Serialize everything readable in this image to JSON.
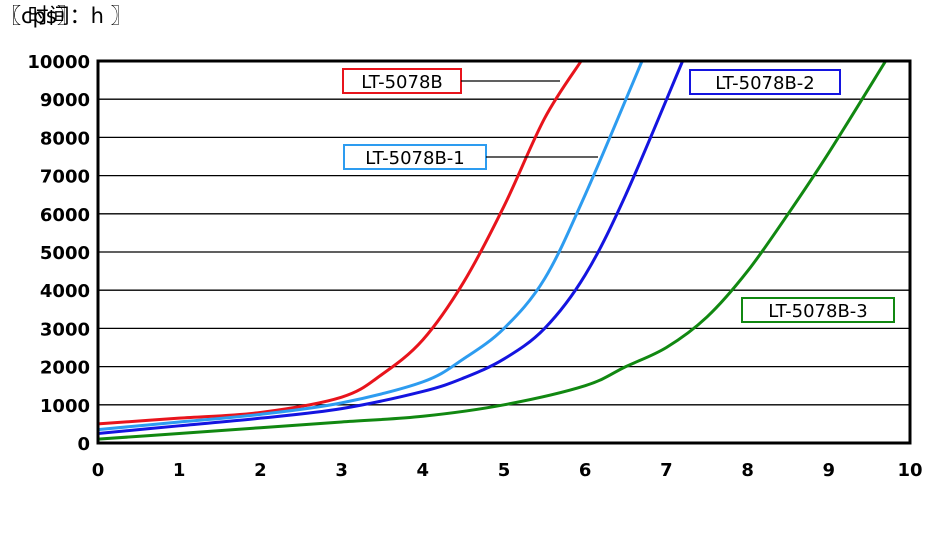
{
  "chart_data": {
    "type": "line",
    "ylabel": "〖cps〗",
    "xlabel": "〖 时间：h 〗",
    "xlim": [
      0,
      10
    ],
    "ylim": [
      0,
      10000
    ],
    "xticks": [
      "0",
      "1",
      "2",
      "3",
      "4",
      "5",
      "6",
      "7",
      "8",
      "9",
      "10"
    ],
    "yticks": [
      "0",
      "1000",
      "2000",
      "3000",
      "4000",
      "5000",
      "6000",
      "7000",
      "8000",
      "9000",
      "10000"
    ],
    "grid": "horizontal",
    "series": [
      {
        "name": "LT-5078B",
        "color": "#e8141c",
        "x": [
          0,
          1,
          2,
          3,
          3.5,
          4,
          4.5,
          5,
          5.5,
          5.95
        ],
        "y": [
          500,
          650,
          800,
          1200,
          1800,
          2700,
          4200,
          6200,
          8500,
          10000
        ]
      },
      {
        "name": "LT-5078B-1",
        "color": "#2d9cf0",
        "x": [
          0,
          1,
          2,
          3,
          4,
          4.5,
          5,
          5.5,
          6,
          6.7
        ],
        "y": [
          350,
          550,
          750,
          1050,
          1600,
          2200,
          3000,
          4300,
          6500,
          10000
        ]
      },
      {
        "name": "LT-5078B-2",
        "color": "#1414e0",
        "x": [
          0,
          1,
          2,
          3,
          4,
          4.5,
          5,
          5.5,
          6,
          6.5,
          7.2
        ],
        "y": [
          250,
          450,
          650,
          900,
          1350,
          1700,
          2200,
          3000,
          4400,
          6500,
          10000
        ]
      },
      {
        "name": "LT-5078B-3",
        "color": "#118811",
        "x": [
          0,
          1,
          2,
          3,
          4,
          5,
          6,
          6.5,
          7,
          7.5,
          8,
          8.5,
          9,
          9.7
        ],
        "y": [
          100,
          250,
          400,
          550,
          700,
          1000,
          1500,
          2000,
          2500,
          3300,
          4500,
          6000,
          7600,
          10000
        ]
      }
    ]
  }
}
